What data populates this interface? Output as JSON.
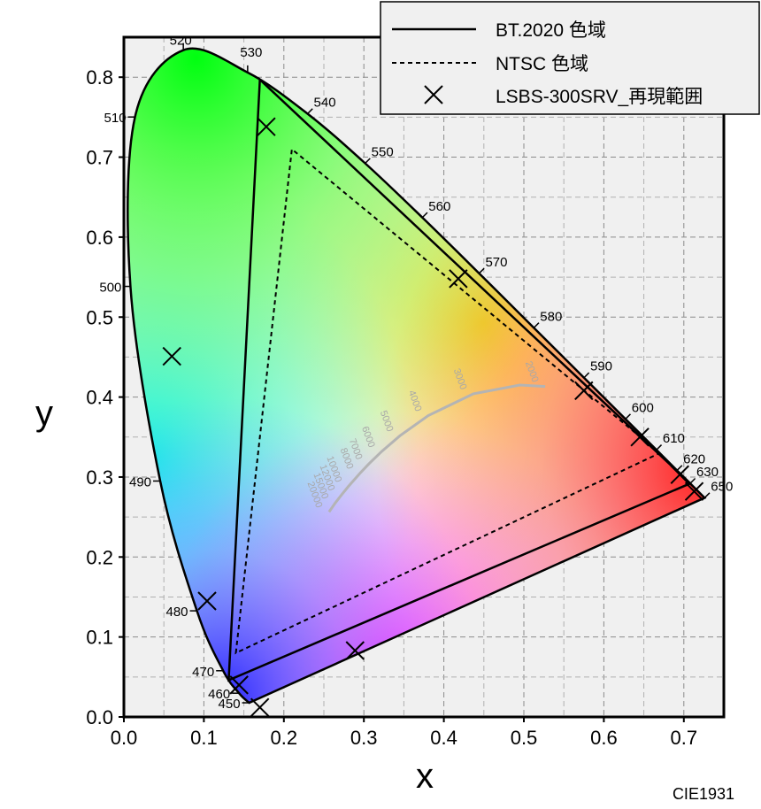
{
  "chart_data": {
    "type": "scatter",
    "xlabel": "x",
    "ylabel": "y",
    "xlim": [
      0.0,
      0.75
    ],
    "ylim": [
      0.0,
      0.85
    ],
    "x_ticks": [
      "0.0",
      "0.1",
      "0.2",
      "0.3",
      "0.4",
      "0.5",
      "0.6",
      "0.7"
    ],
    "y_ticks": [
      "0.0",
      "0.1",
      "0.2",
      "0.3",
      "0.4",
      "0.5",
      "0.6",
      "0.7",
      "0.8"
    ],
    "grid": true,
    "legend_position": "top-right",
    "footer": "CIE1931",
    "spectral_locus": [
      {
        "nm": "450",
        "x": 0.1566,
        "y": 0.0177
      },
      {
        "nm": "460",
        "x": 0.144,
        "y": 0.0297
      },
      {
        "nm": "470",
        "x": 0.1241,
        "y": 0.0578
      },
      {
        "nm": "480",
        "x": 0.0913,
        "y": 0.1327
      },
      {
        "nm": "490",
        "x": 0.0454,
        "y": 0.295
      },
      {
        "nm": "500",
        "x": 0.0082,
        "y": 0.5384
      },
      {
        "nm": "510",
        "x": 0.0139,
        "y": 0.7502
      },
      {
        "nm": "520",
        "x": 0.0743,
        "y": 0.8338
      },
      {
        "nm": "530",
        "x": 0.1547,
        "y": 0.8059
      },
      {
        "nm": "540",
        "x": 0.2296,
        "y": 0.7543
      },
      {
        "nm": "550",
        "x": 0.3016,
        "y": 0.6923
      },
      {
        "nm": "560",
        "x": 0.3731,
        "y": 0.6245
      },
      {
        "nm": "570",
        "x": 0.4441,
        "y": 0.5547
      },
      {
        "nm": "580",
        "x": 0.5125,
        "y": 0.4866
      },
      {
        "nm": "590",
        "x": 0.5752,
        "y": 0.4242
      },
      {
        "nm": "600",
        "x": 0.627,
        "y": 0.3725
      },
      {
        "nm": "610",
        "x": 0.6658,
        "y": 0.334
      },
      {
        "nm": "620",
        "x": 0.6915,
        "y": 0.3083
      },
      {
        "nm": "630",
        "x": 0.7079,
        "y": 0.292
      },
      {
        "nm": "650",
        "x": 0.726,
        "y": 0.274
      }
    ],
    "series": [
      {
        "name": "BT.2020 色域",
        "style": "solid",
        "points": [
          [
            0.708,
            0.292
          ],
          [
            0.17,
            0.797
          ],
          [
            0.131,
            0.046
          ],
          [
            0.708,
            0.292
          ]
        ]
      },
      {
        "name": "NTSC 色域",
        "style": "dashed",
        "points": [
          [
            0.67,
            0.33
          ],
          [
            0.21,
            0.71
          ],
          [
            0.14,
            0.08
          ],
          [
            0.67,
            0.33
          ]
        ]
      },
      {
        "name": "LSBS-300SRV_再現範囲",
        "style": "marker-x",
        "points": [
          [
            0.178,
            0.738
          ],
          [
            0.418,
            0.548
          ],
          [
            0.575,
            0.408
          ],
          [
            0.645,
            0.35
          ],
          [
            0.695,
            0.303
          ],
          [
            0.713,
            0.282
          ],
          [
            0.06,
            0.451
          ],
          [
            0.104,
            0.145
          ],
          [
            0.289,
            0.083
          ],
          [
            0.144,
            0.04
          ],
          [
            0.17,
            0.012
          ]
        ]
      }
    ],
    "planckian_locus": [
      {
        "cct": "2000",
        "x": 0.5267,
        "y": 0.4133
      },
      {
        "cct": "3000",
        "x": 0.4369,
        "y": 0.4041
      },
      {
        "cct": "4000",
        "x": 0.3805,
        "y": 0.3768
      },
      {
        "cct": "5000",
        "x": 0.3451,
        "y": 0.3516
      },
      {
        "cct": "6000",
        "x": 0.3221,
        "y": 0.3318
      },
      {
        "cct": "7000",
        "x": 0.3064,
        "y": 0.3166
      },
      {
        "cct": "8000",
        "x": 0.2952,
        "y": 0.3048
      },
      {
        "cct": "10000",
        "x": 0.2807,
        "y": 0.2883
      },
      {
        "cct": "12000",
        "x": 0.272,
        "y": 0.2776
      },
      {
        "cct": "15000",
        "x": 0.2641,
        "y": 0.2674
      },
      {
        "cct": "20000",
        "x": 0.2565,
        "y": 0.2564
      }
    ]
  }
}
